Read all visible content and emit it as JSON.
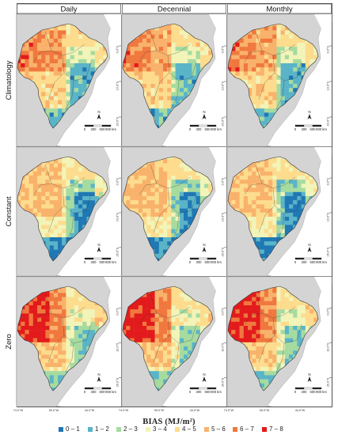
{
  "columns": [
    "Daily",
    "Decennial",
    "Monthly"
  ],
  "rows": [
    "Climatology",
    "Constant",
    "Zero"
  ],
  "lat_ticks": [
    "0.0°S",
    "10.0°S",
    "20.0°S"
  ],
  "lon_ticks": [
    "74.0°W",
    "59.0°W",
    "44.0°W"
  ],
  "scale_bar": [
    "0",
    "300",
    "600",
    "900 km"
  ],
  "north_label": "N",
  "legend": {
    "title": "BIAS (MJ/m²)",
    "classes": [
      {
        "label": "0 – 1",
        "color": "#1f78b4"
      },
      {
        "label": "1 – 2",
        "color": "#5ab4c8"
      },
      {
        "label": "2 – 3",
        "color": "#a6dba0"
      },
      {
        "label": "3 – 4",
        "color": "#f2f4b8"
      },
      {
        "label": "4 – 5",
        "color": "#fddc8e"
      },
      {
        "label": "5 – 6",
        "color": "#f9b26b"
      },
      {
        "label": "6 – 7",
        "color": "#f0783e"
      },
      {
        "label": "7 – 8",
        "color": "#e31a1c"
      }
    ]
  }
}
